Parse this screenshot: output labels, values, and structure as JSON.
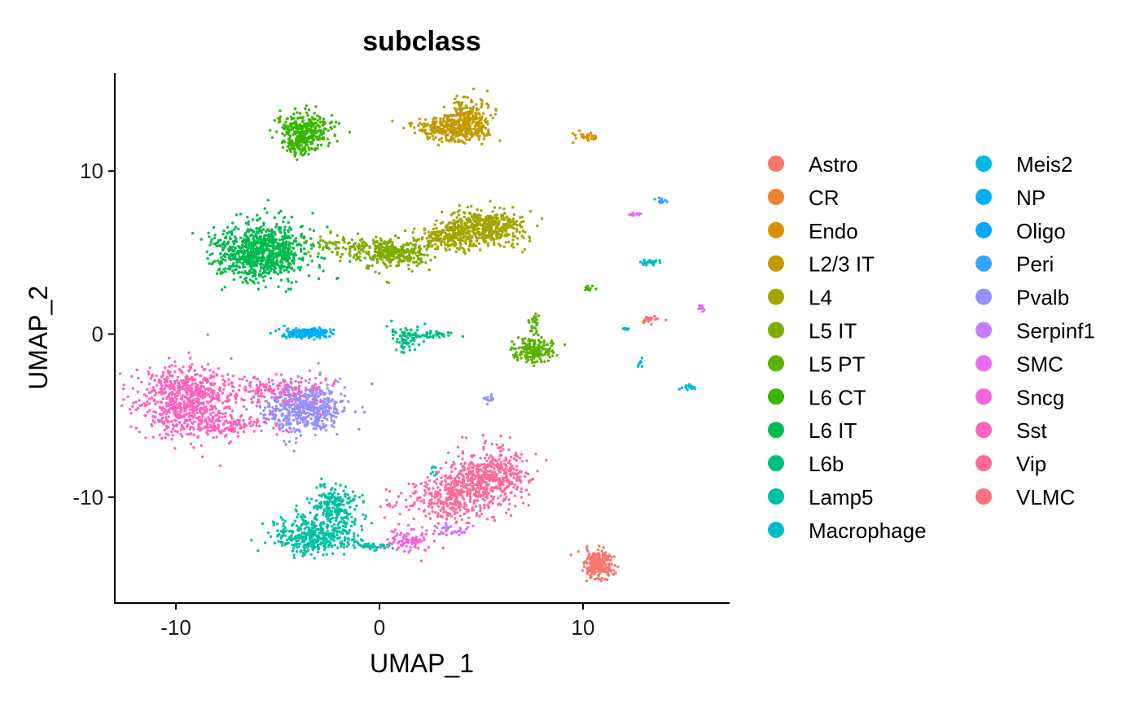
{
  "chart_data": {
    "type": "scatter",
    "title": "subclass",
    "xlabel": "UMAP_1",
    "ylabel": "UMAP_2",
    "xlim": [
      -13,
      17.2
    ],
    "ylim": [
      -16.5,
      16
    ],
    "xticks": [
      -10,
      0,
      10
    ],
    "yticks": [
      -10,
      0,
      10
    ],
    "xtick_labels": [
      "-10",
      "0",
      "10"
    ],
    "ytick_labels": [
      "-10",
      "0",
      "10"
    ],
    "grid": false,
    "legend_position": "right",
    "legend_columns": 2,
    "series": [
      {
        "name": "Astro",
        "color": "#F8766D",
        "clusters": [
          {
            "cx": 10.8,
            "cy": -14.2,
            "sx": 0.35,
            "sy": 0.45,
            "n": 240
          }
        ]
      },
      {
        "name": "CR",
        "color": "#EA8331",
        "clusters": [
          {
            "cx": 13.0,
            "cy": 0.7,
            "sx": 0.05,
            "sy": 0.05,
            "n": 4
          }
        ]
      },
      {
        "name": "Endo",
        "color": "#D89000",
        "clusters": [
          {
            "cx": 10.1,
            "cy": 12.1,
            "sx": 0.3,
            "sy": 0.12,
            "n": 30
          }
        ]
      },
      {
        "name": "L2/3 IT",
        "color": "#C09B00",
        "clusters": [
          {
            "cx": 3.5,
            "cy": 12.6,
            "sx": 0.9,
            "sy": 0.4,
            "n": 320
          },
          {
            "cx": 4.3,
            "cy": 13.3,
            "sx": 0.45,
            "sy": 0.55,
            "n": 200
          }
        ]
      },
      {
        "name": "L4",
        "color": "#A3A500",
        "clusters": [
          {
            "cx": 5.2,
            "cy": 6.6,
            "sx": 0.9,
            "sy": 0.55,
            "n": 480
          },
          {
            "cx": 3.3,
            "cy": 5.9,
            "sx": 0.7,
            "sy": 0.45,
            "n": 180
          }
        ]
      },
      {
        "name": "L5 IT",
        "color": "#7CAE00",
        "clusters": [
          {
            "cx": 0.7,
            "cy": 5.0,
            "sx": 0.9,
            "sy": 0.45,
            "n": 320
          },
          {
            "cx": -1.7,
            "cy": 5.4,
            "sx": 1.0,
            "sy": 0.35,
            "n": 90
          }
        ]
      },
      {
        "name": "L5 PT",
        "color": "#5BB300",
        "clusters": [
          {
            "cx": 7.6,
            "cy": -1.0,
            "sx": 0.45,
            "sy": 0.35,
            "n": 200
          },
          {
            "cx": 7.6,
            "cy": 0.7,
            "sx": 0.12,
            "sy": 0.4,
            "n": 30
          }
        ]
      },
      {
        "name": "L6 CT",
        "color": "#39B600",
        "clusters": [
          {
            "cx": -3.6,
            "cy": 12.4,
            "sx": 0.7,
            "sy": 0.55,
            "n": 320
          },
          {
            "cx": -4.0,
            "cy": 11.6,
            "sx": 0.3,
            "sy": 0.3,
            "n": 60
          },
          {
            "cx": 10.3,
            "cy": 2.8,
            "sx": 0.15,
            "sy": 0.1,
            "n": 12
          }
        ]
      },
      {
        "name": "L6 IT",
        "color": "#00BB4E",
        "clusters": [
          {
            "cx": -5.8,
            "cy": 5.0,
            "sx": 1.1,
            "sy": 0.85,
            "n": 900
          }
        ]
      },
      {
        "name": "L6b",
        "color": "#00BF7D",
        "clusters": [
          {
            "cx": 1.3,
            "cy": -0.1,
            "sx": 0.4,
            "sy": 0.45,
            "n": 70
          },
          {
            "cx": 2.4,
            "cy": 0.0,
            "sx": 0.6,
            "sy": 0.12,
            "n": 40
          }
        ]
      },
      {
        "name": "Lamp5",
        "color": "#00C1A3",
        "clusters": [
          {
            "cx": -3.2,
            "cy": -12.4,
            "sx": 1.0,
            "sy": 0.55,
            "n": 380
          },
          {
            "cx": -2.2,
            "cy": -10.6,
            "sx": 0.6,
            "sy": 0.7,
            "n": 220
          },
          {
            "cx": -0.3,
            "cy": -13.0,
            "sx": 0.5,
            "sy": 0.1,
            "n": 40
          }
        ]
      },
      {
        "name": "Macrophage",
        "color": "#00BFC4",
        "clusters": [
          {
            "cx": 2.7,
            "cy": -8.5,
            "sx": 0.1,
            "sy": 0.15,
            "n": 8
          },
          {
            "cx": 13.3,
            "cy": 4.4,
            "sx": 0.3,
            "sy": 0.1,
            "n": 25
          }
        ]
      },
      {
        "name": "Meis2",
        "color": "#00BAE0",
        "clusters": [
          {
            "cx": 12.8,
            "cy": -1.8,
            "sx": 0.06,
            "sy": 0.12,
            "n": 10
          },
          {
            "cx": 15.2,
            "cy": -3.2,
            "sx": 0.2,
            "sy": 0.12,
            "n": 15
          }
        ]
      },
      {
        "name": "NP",
        "color": "#00B0F6",
        "clusters": [
          {
            "cx": -3.6,
            "cy": 0.05,
            "sx": 0.6,
            "sy": 0.15,
            "n": 180
          }
        ]
      },
      {
        "name": "Oligo",
        "color": "#00A9FF",
        "clusters": [
          {
            "cx": 12.1,
            "cy": 0.3,
            "sx": 0.08,
            "sy": 0.06,
            "n": 5
          }
        ]
      },
      {
        "name": "Peri",
        "color": "#35A2FF",
        "clusters": [
          {
            "cx": 13.8,
            "cy": 8.2,
            "sx": 0.2,
            "sy": 0.1,
            "n": 12
          }
        ]
      },
      {
        "name": "Pvalb",
        "color": "#9590FF",
        "clusters": [
          {
            "cx": -3.8,
            "cy": -4.5,
            "sx": 1.0,
            "sy": 0.75,
            "n": 550
          },
          {
            "cx": 5.4,
            "cy": -4.0,
            "sx": 0.15,
            "sy": 0.12,
            "n": 15
          }
        ]
      },
      {
        "name": "Serpinf1",
        "color": "#C77CFF",
        "clusters": [
          {
            "cx": 3.6,
            "cy": -12.0,
            "sx": 0.5,
            "sy": 0.15,
            "n": 35
          }
        ]
      },
      {
        "name": "SMC",
        "color": "#E76BF3",
        "clusters": [
          {
            "cx": 12.5,
            "cy": 7.4,
            "sx": 0.15,
            "sy": 0.08,
            "n": 12
          },
          {
            "cx": 15.8,
            "cy": 1.6,
            "sx": 0.12,
            "sy": 0.1,
            "n": 12
          }
        ]
      },
      {
        "name": "Sncg",
        "color": "#F265DC",
        "clusters": [
          {
            "cx": 1.4,
            "cy": -12.7,
            "sx": 0.6,
            "sy": 0.35,
            "n": 90
          }
        ]
      },
      {
        "name": "Sst",
        "color": "#FF62BC",
        "clusters": [
          {
            "cx": -9.5,
            "cy": -4.0,
            "sx": 1.2,
            "sy": 1.1,
            "n": 700
          },
          {
            "cx": -5.3,
            "cy": -3.4,
            "sx": 1.6,
            "sy": 0.45,
            "n": 160
          },
          {
            "cx": -7.5,
            "cy": -5.6,
            "sx": 1.2,
            "sy": 0.3,
            "n": 140
          }
        ]
      },
      {
        "name": "Vip",
        "color": "#FF6A98",
        "clusters": [
          {
            "cx": 5.2,
            "cy": -8.7,
            "sx": 1.0,
            "sy": 0.8,
            "n": 450
          },
          {
            "cx": 3.6,
            "cy": -10.1,
            "sx": 1.2,
            "sy": 0.7,
            "n": 350
          }
        ]
      },
      {
        "name": "VLMC",
        "color": "#FC717F",
        "clusters": [
          {
            "cx": 13.4,
            "cy": 0.9,
            "sx": 0.25,
            "sy": 0.15,
            "n": 18
          }
        ]
      }
    ]
  }
}
